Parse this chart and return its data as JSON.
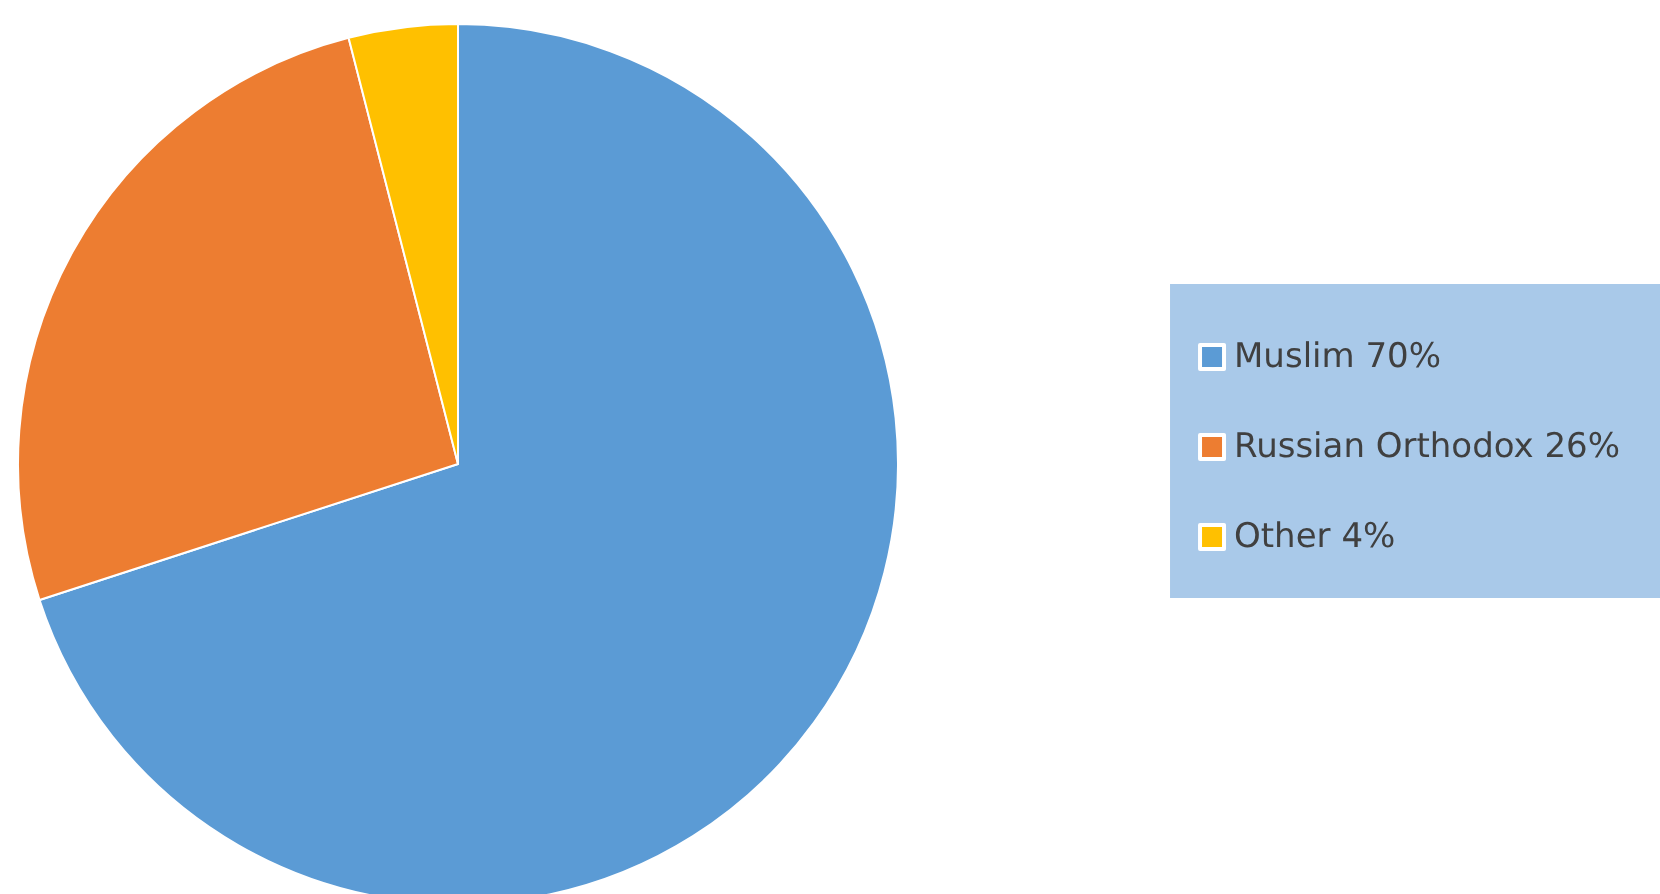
{
  "chart_data": {
    "type": "pie",
    "categories": [
      "Muslim 70%",
      "Russian Orthodox 26%",
      "Other 4%"
    ],
    "values": [
      70,
      26,
      4
    ],
    "colors": [
      "#5b9bd5",
      "#ed7d31",
      "#ffc000"
    ],
    "legend": "right"
  }
}
